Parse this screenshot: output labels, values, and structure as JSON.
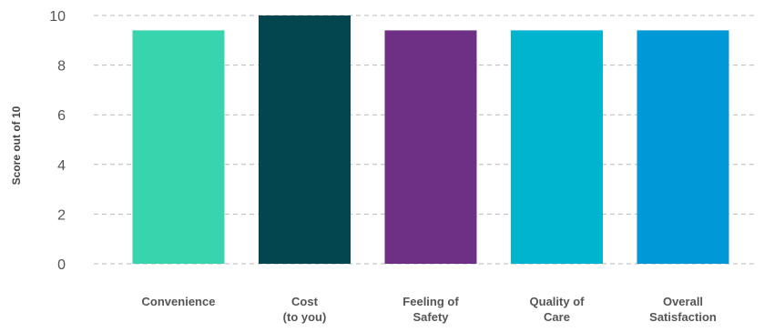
{
  "chart_data": {
    "type": "bar",
    "title": "",
    "xlabel": "",
    "ylabel": "Score out of 10",
    "ylim": [
      0,
      10
    ],
    "yticks": [
      0,
      2,
      4,
      6,
      8,
      10
    ],
    "grid": true,
    "categories": [
      [
        "Convenience"
      ],
      [
        "Cost",
        "(to you)"
      ],
      [
        "Feeling of",
        "Safety"
      ],
      [
        "Quality of",
        "Care"
      ],
      [
        "Overall",
        "Satisfaction"
      ]
    ],
    "values": [
      9.4,
      10,
      9.4,
      9.4,
      9.4
    ],
    "colors": [
      "#38d4ae",
      "#03464f",
      "#6e3085",
      "#00b4d0",
      "#0098d6"
    ]
  }
}
